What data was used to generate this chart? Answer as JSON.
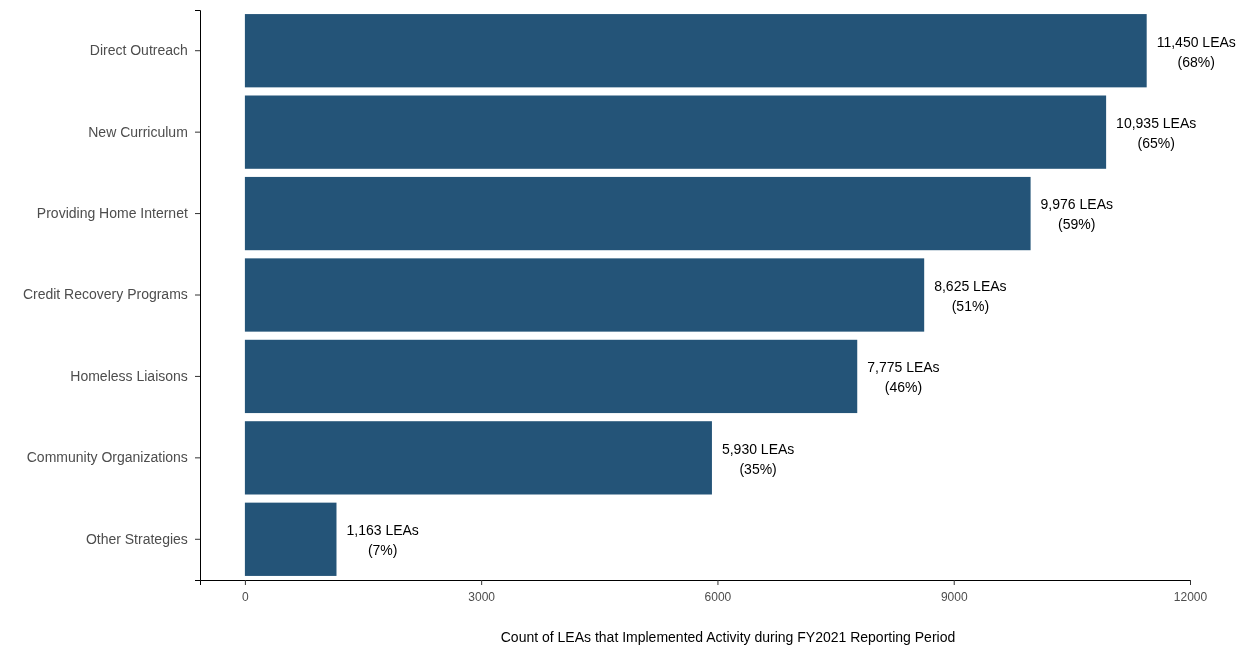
{
  "chart_data": {
    "type": "bar",
    "orientation": "horizontal",
    "xlabel": "Count of LEAs that Implemented Activity during FY2021 Reporting Period",
    "categories": [
      "Direct Outreach",
      "New Curriculum",
      "Providing Home Internet",
      "Credit Recovery Programs",
      "Homeless Liaisons",
      "Community Organizations",
      "Other Strategies"
    ],
    "values": [
      11450,
      10935,
      9976,
      8625,
      7775,
      5930,
      1163
    ],
    "value_labels": [
      "11,450 LEAs\n(68%)",
      "10,935 LEAs\n(65%)",
      "9,976 LEAs\n(59%)",
      "8,625 LEAs\n(51%)",
      "7,775 LEAs\n(46%)",
      "5,930 LEAs\n(35%)",
      "1,163 LEAs\n(7%)"
    ],
    "color": "#245478",
    "xlim": [
      -570,
      12000
    ],
    "xticks": [
      0,
      3000,
      6000,
      9000,
      12000
    ]
  }
}
